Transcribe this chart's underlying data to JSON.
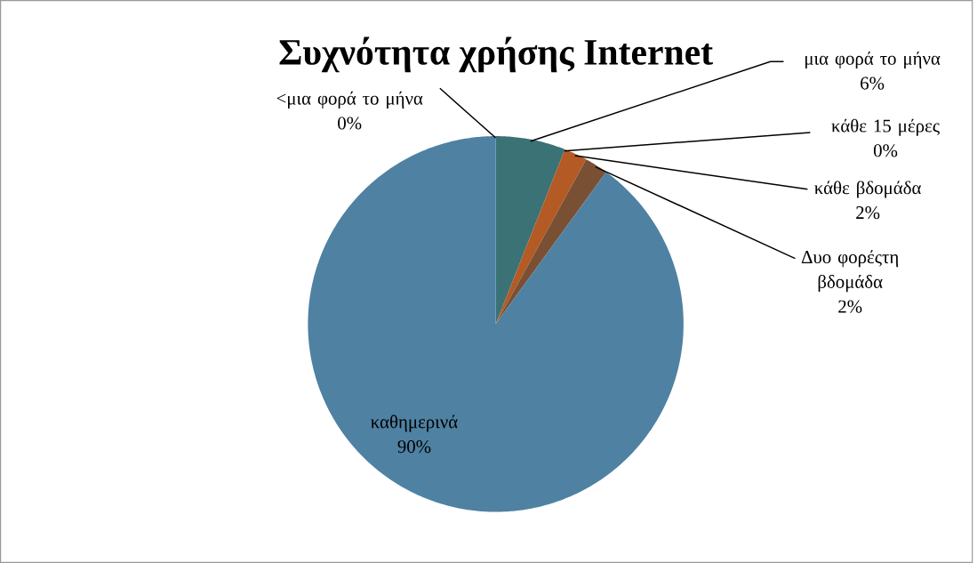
{
  "chart_data": {
    "type": "pie",
    "title": "Συχνότητα χρήσης Internet",
    "categories": [
      "<μια φορά το μήνα",
      "μια φορά το μήνα",
      "κάθε 15 μέρες",
      "κάθε βδομάδα",
      "Δυο φορέςτη βδομάδα",
      "καθημερινά"
    ],
    "values": [
      0,
      6,
      0,
      2,
      2,
      90
    ],
    "value_labels": [
      "0%",
      "6%",
      "0%",
      "2%",
      "2%",
      "90%"
    ],
    "colors": [
      "#4f81bd",
      "#3a7276",
      "#c0504d",
      "#b35a25",
      "#7a5035",
      "#4f81a2"
    ]
  }
}
